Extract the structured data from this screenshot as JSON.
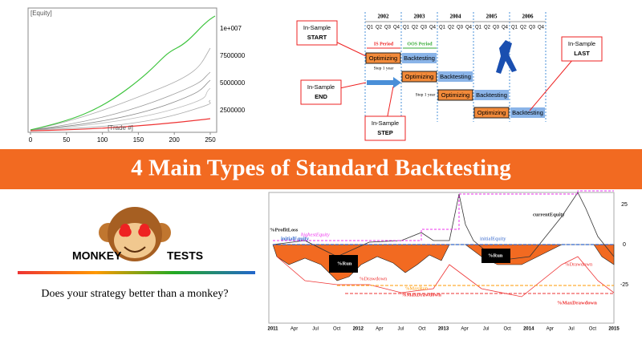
{
  "equity_chart": {
    "title": "[Equity]",
    "x_label": "[Trade #]",
    "y_tick_labels": [
      "1e+007",
      "7500000",
      "5000000",
      "2500000"
    ],
    "x_tick_labels": [
      0,
      50,
      100,
      150,
      200,
      250
    ]
  },
  "walk_forward": {
    "years": [
      "2002",
      "2003",
      "2004",
      "2005",
      "2006"
    ],
    "quarters": [
      "Q1",
      "Q2",
      "Q3",
      "Q4"
    ],
    "is_period": "IS Period",
    "oos_period": "OOS Period",
    "step": "Step 1 year",
    "optimizing": "Optimizing",
    "backtesting": "Backtesting",
    "callouts": {
      "start": [
        "In-Sample",
        "START"
      ],
      "end": [
        "In-Sample",
        "END"
      ],
      "step": [
        "In-Sample",
        "STEP"
      ],
      "last": [
        "In-Sample",
        "LAST"
      ]
    }
  },
  "banner": {
    "title": "4 Main Types of Standard Backtesting"
  },
  "monkey": {
    "left": "MONKEY",
    "right": "TESTS",
    "tagline": "Does your strategy better than a monkey?"
  },
  "drawdown_chart": {
    "profit_loss": "%ProfitLoss",
    "highest_equity": "highestEquity",
    "initial_equity": "initialEquity",
    "current_equity": "currentEquity",
    "run": "%Run",
    "drawdown": "%Drawdown",
    "max_run": "%MaxRun",
    "max_drawdown": "%MaxDrawdown",
    "y_tick_labels": [
      "25",
      "0",
      "-25"
    ],
    "x_tick_labels": [
      "2011",
      "Apr",
      "Jul",
      "Oct",
      "2012",
      "Apr",
      "Jul",
      "Oct",
      "2013",
      "Apr",
      "Jul",
      "Oct",
      "2014",
      "Apr",
      "Jul",
      "Oct",
      "2015"
    ]
  }
}
